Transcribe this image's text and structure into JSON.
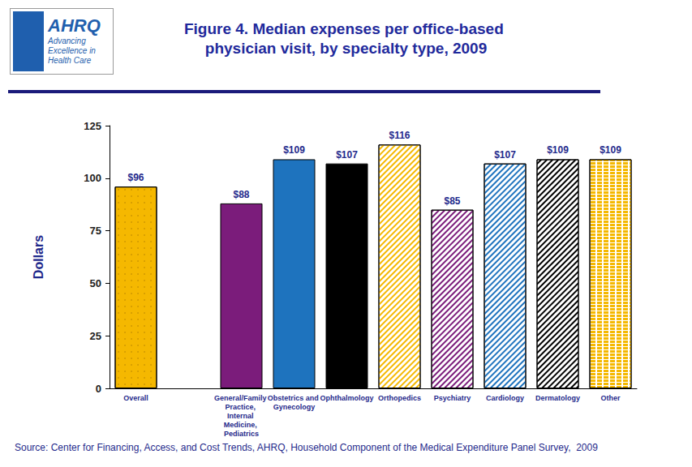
{
  "logo": {
    "name": "AHRQ",
    "tagline": "Advancing Excellence in Health Care"
  },
  "chart_data": {
    "type": "bar",
    "title": "Figure 4. Median expenses per office-based physician visit, by specialty type, 2009",
    "y_label": "Dollars",
    "source": "Source: Center for Financing, Access, and Cost Trends, AHRQ, Household Component of the Medical Expenditure Panel Survey,  2009",
    "categories": [
      "Overall",
      null,
      "General/Family Practice, Internal Medicine, Pediatrics",
      "Obstetrics and Gynecology",
      "Ophthalmology",
      "Orthopedics",
      "Psychiatry",
      "Cardiology",
      "Dermatology",
      "Other"
    ],
    "values": [
      96,
      null,
      88,
      109,
      107,
      116,
      85,
      107,
      109,
      109
    ],
    "value_labels": [
      "$96",
      null,
      "$88",
      "$109",
      "$107",
      "$116",
      "$85",
      "$107",
      "$109",
      "$109"
    ],
    "colors": [
      "#F5B800",
      null,
      "#7B1C7B",
      "#1E73BE",
      "#000000",
      "#F5B800",
      "#7B1C7B",
      "#1E73BE",
      "#000000",
      "#F5B800"
    ],
    "ylim": [
      0,
      125
    ],
    "yticks": [
      0,
      25,
      50,
      75,
      100,
      125
    ],
    "grid": false,
    "data_labels": true
  }
}
